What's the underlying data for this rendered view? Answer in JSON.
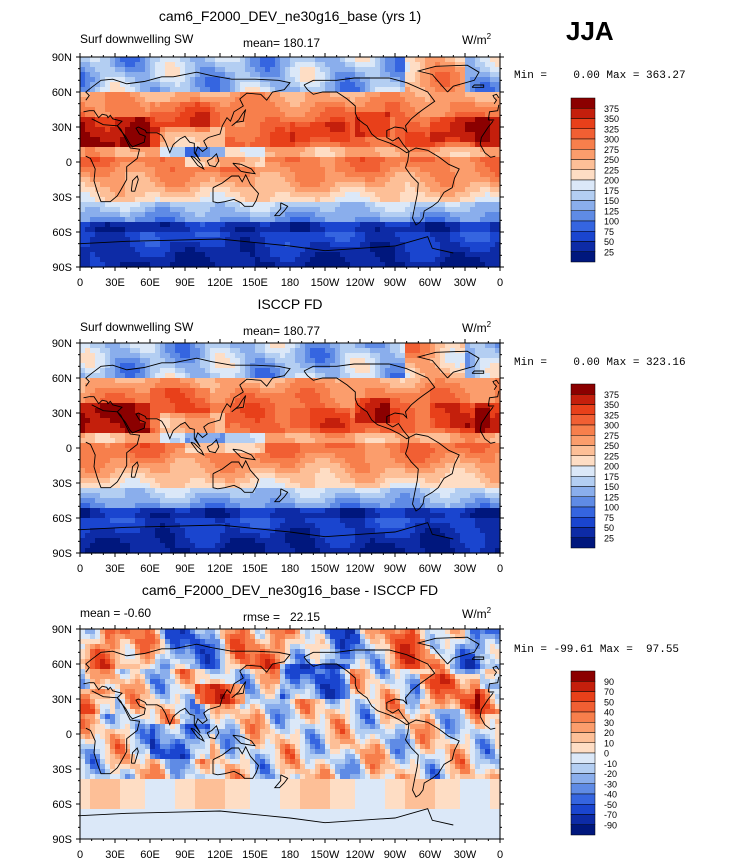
{
  "season": "JJA",
  "panels": [
    {
      "title": "cam6_F2000_DEV_ne30g16_base (yrs 1)",
      "left_label": "Surf downwelling SW",
      "center_label": "mean= 180.17",
      "units": "W/m",
      "units_exp": "2",
      "min_max": "Min =    0.00 Max = 363.27",
      "colorbar_levels": [
        "375",
        "350",
        "325",
        "300",
        "275",
        "250",
        "225",
        "200",
        "175",
        "150",
        "125",
        "100",
        "75",
        "50",
        "25"
      ],
      "colorbar_colors": [
        "#8b0000",
        "#c41f0c",
        "#e8401a",
        "#f15f33",
        "#f77f4c",
        "#fb9d6c",
        "#fdbf97",
        "#feddc4",
        "#dbe8f8",
        "#b3cef2",
        "#8aaeec",
        "#5f8be5",
        "#3565e0",
        "#1a45cf",
        "#0d2ba6",
        "#00177d"
      ],
      "fields": "mean_sw"
    },
    {
      "title": "ISCCP FD",
      "left_label": "Surf downwelling SW",
      "center_label": "mean= 180.77",
      "units": "W/m",
      "units_exp": "2",
      "min_max": "Min =    0.00 Max = 323.16",
      "colorbar_levels": [
        "375",
        "350",
        "325",
        "300",
        "275",
        "250",
        "225",
        "200",
        "175",
        "150",
        "125",
        "100",
        "75",
        "50",
        "25"
      ],
      "colorbar_colors": [
        "#8b0000",
        "#c41f0c",
        "#e8401a",
        "#f15f33",
        "#f77f4c",
        "#fb9d6c",
        "#fdbf97",
        "#feddc4",
        "#dbe8f8",
        "#b3cef2",
        "#8aaeec",
        "#5f8be5",
        "#3565e0",
        "#1a45cf",
        "#0d2ba6",
        "#00177d"
      ],
      "fields": "obs_sw"
    },
    {
      "title": "cam6_F2000_DEV_ne30g16_base - ISCCP FD",
      "left_label": "mean =   -0.60",
      "center_label": "rmse =   22.15",
      "units": "W/m",
      "units_exp": "2",
      "min_max": "Min = -99.61 Max =  97.55",
      "colorbar_levels": [
        "90",
        "70",
        "50",
        "40",
        "30",
        "20",
        "10",
        "0",
        "-10",
        "-20",
        "-30",
        "-40",
        "-50",
        "-70",
        "-90"
      ],
      "colorbar_colors": [
        "#8b0000",
        "#c41f0c",
        "#e8401a",
        "#f15f33",
        "#f77f4c",
        "#fb9d6c",
        "#fdbf97",
        "#feddc4",
        "#dbe8f8",
        "#b3cef2",
        "#8aaeec",
        "#5f8be5",
        "#3565e0",
        "#1a45cf",
        "#0d2ba6",
        "#00177d"
      ],
      "fields": "diff_sw"
    }
  ],
  "lat_labels": [
    "90N",
    "60N",
    "30N",
    "0",
    "30S",
    "60S",
    "90S"
  ],
  "lon_labels": [
    "0",
    "30E",
    "60E",
    "90E",
    "120E",
    "150E",
    "180",
    "150W",
    "120W",
    "90W",
    "60W",
    "30W",
    "0"
  ]
}
